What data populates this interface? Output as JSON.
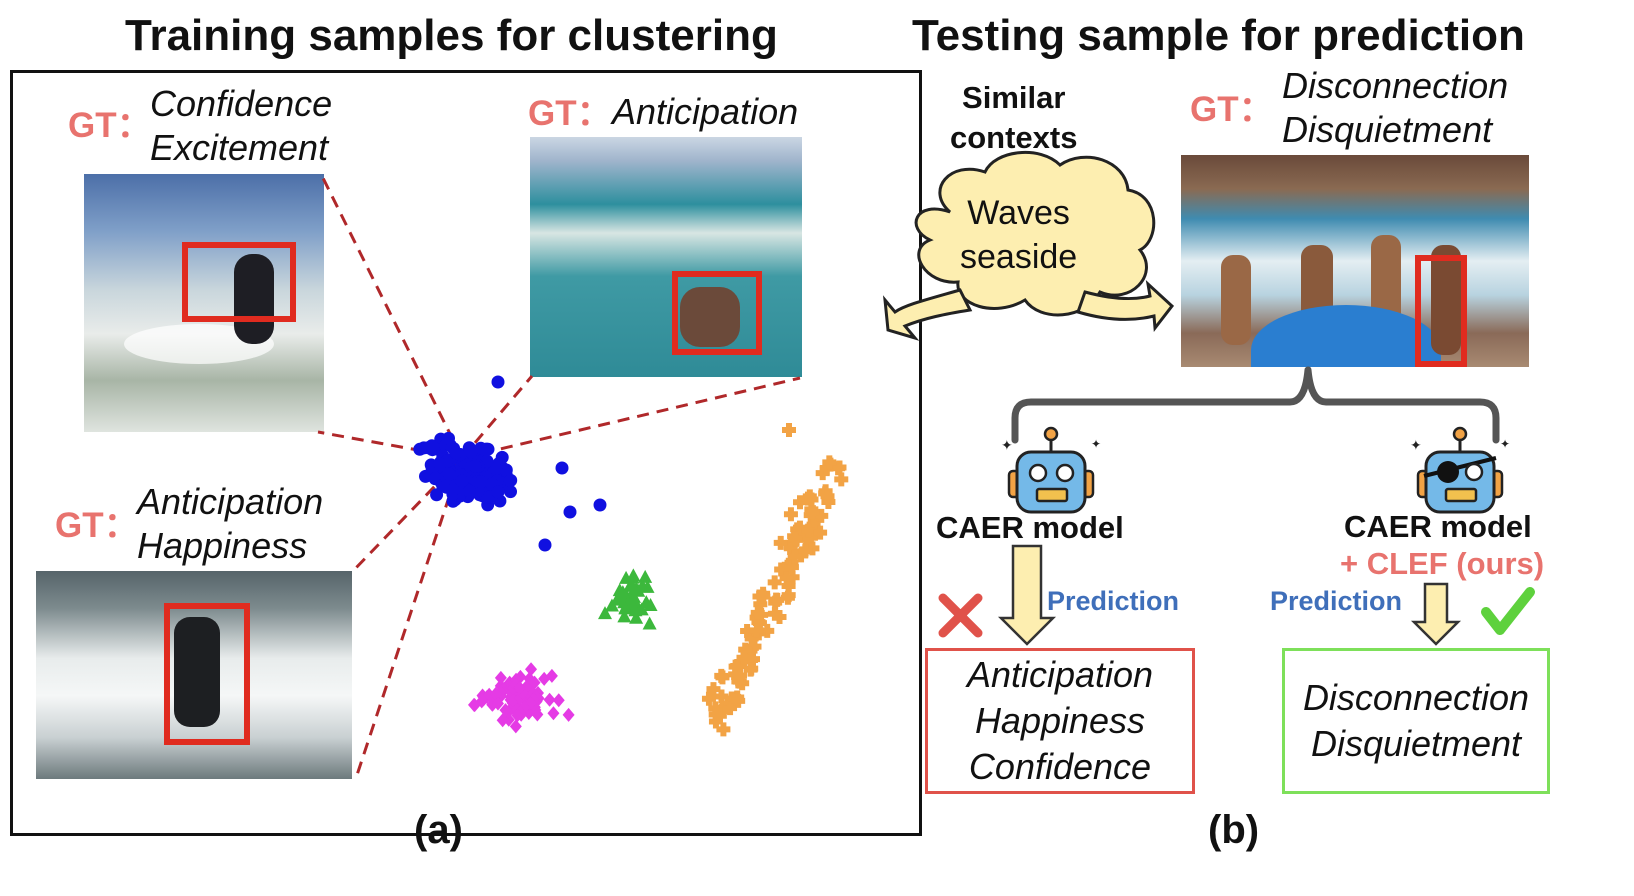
{
  "panel_a": {
    "title": "Training samples for clustering",
    "label": "(a)",
    "samples": [
      {
        "gt": "GT：",
        "emotions": [
          "Confidence",
          "Excitement"
        ]
      },
      {
        "gt": "GT：",
        "emotions": [
          "Anticipation"
        ]
      },
      {
        "gt": "GT：",
        "emotions": [
          "Anticipation",
          "Happiness"
        ]
      }
    ],
    "clusters": [
      {
        "marker": "circle",
        "color": "#1010e0"
      },
      {
        "marker": "triangle",
        "color": "#3cb83c"
      },
      {
        "marker": "diamond",
        "color": "#e53be5"
      },
      {
        "marker": "plus",
        "color": "#f2a345"
      }
    ],
    "link_color": "#b0282a",
    "bbox_color": "#e02b1f"
  },
  "panel_b": {
    "title": "Testing sample for prediction",
    "label": "(b)",
    "context_label": [
      "Similar",
      "contexts"
    ],
    "cloud_text": [
      "Waves",
      "seaside"
    ],
    "test_gt": "GT：",
    "test_emotions": [
      "Disconnection",
      "Disquietment"
    ],
    "baseline": {
      "model": "CAER model",
      "prediction_label": "Prediction",
      "result_icon": "cross-icon",
      "output": [
        "Anticipation",
        "Happiness",
        "Confidence"
      ],
      "color": "#e0524a"
    },
    "ours": {
      "model": "CAER model",
      "addon": "+ CLEF (ours)",
      "prediction_label": "Prediction",
      "result_icon": "check-icon",
      "output": [
        "Disconnection",
        "Disquietment"
      ],
      "color": "#7ee05a"
    }
  }
}
